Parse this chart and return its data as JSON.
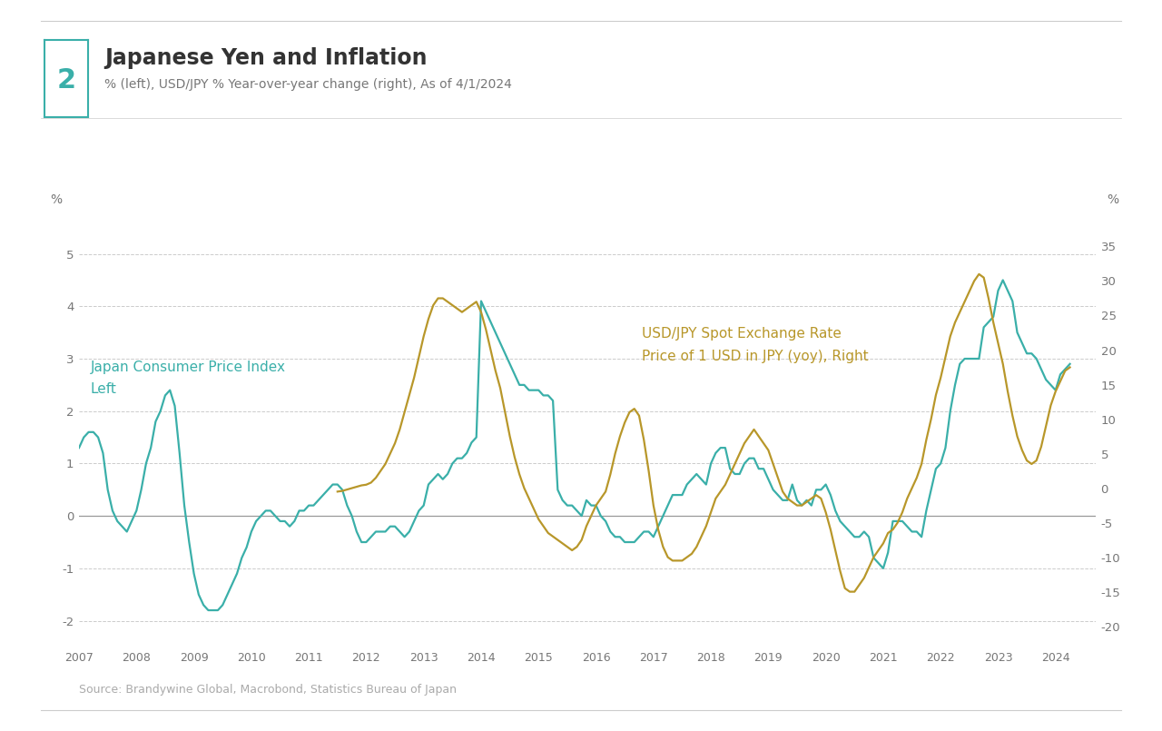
{
  "title": "Japanese Yen and Inflation",
  "subtitle": "% (left), USD/JPY % Year-over-year change (right), As of 4/1/2024",
  "chart_number": "2",
  "source": "Source: Brandywine Global, Macrobond, Statistics Bureau of Japan",
  "cpi_color": "#3aafa9",
  "usd_jpy_color": "#b8972a",
  "background_color": "#ffffff",
  "left_ylim": [
    -2.5,
    5.8
  ],
  "right_ylim": [
    -23.0,
    40.0
  ],
  "left_yticks": [
    -2,
    -1,
    0,
    1,
    2,
    3,
    4,
    5
  ],
  "right_yticks": [
    -20,
    -15,
    -10,
    -5,
    0,
    5,
    10,
    15,
    20,
    25,
    30,
    35
  ],
  "cpi_label_title": "Japan Consumer Price Index",
  "cpi_label_sub": "Left",
  "usd_label_title": "USD/JPY Spot Exchange Rate",
  "usd_label_sub": "Price of 1 USD in JPY (yoy), Right",
  "cpi_dates": [
    2007.0,
    2007.083,
    2007.167,
    2007.25,
    2007.333,
    2007.417,
    2007.5,
    2007.583,
    2007.667,
    2007.75,
    2007.833,
    2007.917,
    2008.0,
    2008.083,
    2008.167,
    2008.25,
    2008.333,
    2008.417,
    2008.5,
    2008.583,
    2008.667,
    2008.75,
    2008.833,
    2008.917,
    2009.0,
    2009.083,
    2009.167,
    2009.25,
    2009.333,
    2009.417,
    2009.5,
    2009.583,
    2009.667,
    2009.75,
    2009.833,
    2009.917,
    2010.0,
    2010.083,
    2010.167,
    2010.25,
    2010.333,
    2010.417,
    2010.5,
    2010.583,
    2010.667,
    2010.75,
    2010.833,
    2010.917,
    2011.0,
    2011.083,
    2011.167,
    2011.25,
    2011.333,
    2011.417,
    2011.5,
    2011.583,
    2011.667,
    2011.75,
    2011.833,
    2011.917,
    2012.0,
    2012.083,
    2012.167,
    2012.25,
    2012.333,
    2012.417,
    2012.5,
    2012.583,
    2012.667,
    2012.75,
    2012.833,
    2012.917,
    2013.0,
    2013.083,
    2013.167,
    2013.25,
    2013.333,
    2013.417,
    2013.5,
    2013.583,
    2013.667,
    2013.75,
    2013.833,
    2013.917,
    2014.0,
    2014.083,
    2014.167,
    2014.25,
    2014.333,
    2014.417,
    2014.5,
    2014.583,
    2014.667,
    2014.75,
    2014.833,
    2014.917,
    2015.0,
    2015.083,
    2015.167,
    2015.25,
    2015.333,
    2015.417,
    2015.5,
    2015.583,
    2015.667,
    2015.75,
    2015.833,
    2015.917,
    2016.0,
    2016.083,
    2016.167,
    2016.25,
    2016.333,
    2016.417,
    2016.5,
    2016.583,
    2016.667,
    2016.75,
    2016.833,
    2016.917,
    2017.0,
    2017.083,
    2017.167,
    2017.25,
    2017.333,
    2017.417,
    2017.5,
    2017.583,
    2017.667,
    2017.75,
    2017.833,
    2017.917,
    2018.0,
    2018.083,
    2018.167,
    2018.25,
    2018.333,
    2018.417,
    2018.5,
    2018.583,
    2018.667,
    2018.75,
    2018.833,
    2018.917,
    2019.0,
    2019.083,
    2019.167,
    2019.25,
    2019.333,
    2019.417,
    2019.5,
    2019.583,
    2019.667,
    2019.75,
    2019.833,
    2019.917,
    2020.0,
    2020.083,
    2020.167,
    2020.25,
    2020.333,
    2020.417,
    2020.5,
    2020.583,
    2020.667,
    2020.75,
    2020.833,
    2020.917,
    2021.0,
    2021.083,
    2021.167,
    2021.25,
    2021.333,
    2021.417,
    2021.5,
    2021.583,
    2021.667,
    2021.75,
    2021.833,
    2021.917,
    2022.0,
    2022.083,
    2022.167,
    2022.25,
    2022.333,
    2022.417,
    2022.5,
    2022.583,
    2022.667,
    2022.75,
    2022.833,
    2022.917,
    2023.0,
    2023.083,
    2023.167,
    2023.25,
    2023.333,
    2023.417,
    2023.5,
    2023.583,
    2023.667,
    2023.75,
    2023.833,
    2023.917,
    2024.0,
    2024.083,
    2024.167,
    2024.25
  ],
  "cpi_values": [
    1.3,
    1.5,
    1.6,
    1.6,
    1.5,
    1.2,
    0.5,
    0.1,
    -0.1,
    -0.2,
    -0.3,
    -0.1,
    0.1,
    0.5,
    1.0,
    1.3,
    1.8,
    2.0,
    2.3,
    2.4,
    2.1,
    1.2,
    0.2,
    -0.5,
    -1.1,
    -1.5,
    -1.7,
    -1.8,
    -1.8,
    -1.8,
    -1.7,
    -1.5,
    -1.3,
    -1.1,
    -0.8,
    -0.6,
    -0.3,
    -0.1,
    0.0,
    0.1,
    0.1,
    0.0,
    -0.1,
    -0.1,
    -0.2,
    -0.1,
    0.1,
    0.1,
    0.2,
    0.2,
    0.3,
    0.4,
    0.5,
    0.6,
    0.6,
    0.5,
    0.2,
    0.0,
    -0.3,
    -0.5,
    -0.5,
    -0.4,
    -0.3,
    -0.3,
    -0.3,
    -0.2,
    -0.2,
    -0.3,
    -0.4,
    -0.3,
    -0.1,
    0.1,
    0.2,
    0.6,
    0.7,
    0.8,
    0.7,
    0.8,
    1.0,
    1.1,
    1.1,
    1.2,
    1.4,
    1.5,
    4.1,
    3.9,
    3.7,
    3.5,
    3.3,
    3.1,
    2.9,
    2.7,
    2.5,
    2.5,
    2.4,
    2.4,
    2.4,
    2.3,
    2.3,
    2.2,
    0.5,
    0.3,
    0.2,
    0.2,
    0.1,
    0.0,
    0.3,
    0.2,
    0.2,
    0.0,
    -0.1,
    -0.3,
    -0.4,
    -0.4,
    -0.5,
    -0.5,
    -0.5,
    -0.4,
    -0.3,
    -0.3,
    -0.4,
    -0.2,
    0.0,
    0.2,
    0.4,
    0.4,
    0.4,
    0.6,
    0.7,
    0.8,
    0.7,
    0.6,
    1.0,
    1.2,
    1.3,
    1.3,
    0.9,
    0.8,
    0.8,
    1.0,
    1.1,
    1.1,
    0.9,
    0.9,
    0.7,
    0.5,
    0.4,
    0.3,
    0.3,
    0.6,
    0.3,
    0.2,
    0.3,
    0.2,
    0.5,
    0.5,
    0.6,
    0.4,
    0.1,
    -0.1,
    -0.2,
    -0.3,
    -0.4,
    -0.4,
    -0.3,
    -0.4,
    -0.8,
    -0.9,
    -1.0,
    -0.7,
    -0.1,
    -0.1,
    -0.1,
    -0.2,
    -0.3,
    -0.3,
    -0.4,
    0.1,
    0.5,
    0.9,
    1.0,
    1.3,
    2.0,
    2.5,
    2.9,
    3.0,
    3.0,
    3.0,
    3.0,
    3.6,
    3.7,
    3.8,
    4.3,
    4.5,
    4.3,
    4.1,
    3.5,
    3.3,
    3.1,
    3.1,
    3.0,
    2.8,
    2.6,
    2.5,
    2.4,
    2.7,
    2.8,
    2.9
  ],
  "usd_jpy_dates": [
    2011.5,
    2011.583,
    2011.667,
    2011.75,
    2011.833,
    2011.917,
    2012.0,
    2012.083,
    2012.167,
    2012.25,
    2012.333,
    2012.417,
    2012.5,
    2012.583,
    2012.667,
    2012.75,
    2012.833,
    2012.917,
    2013.0,
    2013.083,
    2013.167,
    2013.25,
    2013.333,
    2013.417,
    2013.5,
    2013.583,
    2013.667,
    2013.75,
    2013.833,
    2013.917,
    2014.0,
    2014.083,
    2014.167,
    2014.25,
    2014.333,
    2014.417,
    2014.5,
    2014.583,
    2014.667,
    2014.75,
    2014.833,
    2014.917,
    2015.0,
    2015.083,
    2015.167,
    2015.25,
    2015.333,
    2015.417,
    2015.5,
    2015.583,
    2015.667,
    2015.75,
    2015.833,
    2015.917,
    2016.0,
    2016.083,
    2016.167,
    2016.25,
    2016.333,
    2016.417,
    2016.5,
    2016.583,
    2016.667,
    2016.75,
    2016.833,
    2016.917,
    2017.0,
    2017.083,
    2017.167,
    2017.25,
    2017.333,
    2017.417,
    2017.5,
    2017.583,
    2017.667,
    2017.75,
    2017.833,
    2017.917,
    2018.0,
    2018.083,
    2018.167,
    2018.25,
    2018.333,
    2018.417,
    2018.5,
    2018.583,
    2018.667,
    2018.75,
    2018.833,
    2018.917,
    2019.0,
    2019.083,
    2019.167,
    2019.25,
    2019.333,
    2019.417,
    2019.5,
    2019.583,
    2019.667,
    2019.75,
    2019.833,
    2019.917,
    2020.0,
    2020.083,
    2020.167,
    2020.25,
    2020.333,
    2020.417,
    2020.5,
    2020.583,
    2020.667,
    2020.75,
    2020.833,
    2020.917,
    2021.0,
    2021.083,
    2021.167,
    2021.25,
    2021.333,
    2021.417,
    2021.5,
    2021.583,
    2021.667,
    2021.75,
    2021.833,
    2021.917,
    2022.0,
    2022.083,
    2022.167,
    2022.25,
    2022.333,
    2022.417,
    2022.5,
    2022.583,
    2022.667,
    2022.75,
    2022.833,
    2022.917,
    2023.0,
    2023.083,
    2023.167,
    2023.25,
    2023.333,
    2023.417,
    2023.5,
    2023.583,
    2023.667,
    2023.75,
    2023.833,
    2023.917,
    2024.0,
    2024.083,
    2024.167,
    2024.25
  ],
  "usd_jpy_values": [
    -0.5,
    -0.4,
    -0.2,
    0.0,
    0.2,
    0.4,
    0.5,
    0.8,
    1.5,
    2.5,
    3.5,
    5.0,
    6.5,
    8.5,
    11.0,
    13.5,
    16.0,
    19.0,
    22.0,
    24.5,
    26.5,
    27.5,
    27.5,
    27.0,
    26.5,
    26.0,
    25.5,
    26.0,
    26.5,
    27.0,
    25.5,
    23.0,
    20.0,
    17.0,
    14.5,
    11.0,
    7.5,
    4.5,
    2.0,
    0.0,
    -1.5,
    -3.0,
    -4.5,
    -5.5,
    -6.5,
    -7.0,
    -7.5,
    -8.0,
    -8.5,
    -9.0,
    -8.5,
    -7.5,
    -5.5,
    -4.0,
    -2.5,
    -1.5,
    -0.5,
    2.0,
    5.0,
    7.5,
    9.5,
    11.0,
    11.5,
    10.5,
    7.0,
    2.5,
    -2.5,
    -6.0,
    -8.5,
    -10.0,
    -10.5,
    -10.5,
    -10.5,
    -10.0,
    -9.5,
    -8.5,
    -7.0,
    -5.5,
    -3.5,
    -1.5,
    -0.5,
    0.5,
    2.0,
    3.5,
    5.0,
    6.5,
    7.5,
    8.5,
    7.5,
    6.5,
    5.5,
    3.5,
    1.5,
    -0.5,
    -1.5,
    -2.0,
    -2.5,
    -2.5,
    -2.0,
    -1.5,
    -1.0,
    -1.5,
    -3.5,
    -6.0,
    -9.0,
    -12.0,
    -14.5,
    -15.0,
    -15.0,
    -14.0,
    -13.0,
    -11.5,
    -10.0,
    -9.0,
    -8.0,
    -6.5,
    -6.0,
    -5.0,
    -3.5,
    -1.5,
    0.0,
    1.5,
    3.5,
    7.0,
    10.0,
    13.5,
    16.0,
    19.0,
    22.0,
    24.0,
    25.5,
    27.0,
    28.5,
    30.0,
    31.0,
    30.5,
    27.5,
    24.0,
    21.0,
    18.0,
    14.0,
    10.5,
    7.5,
    5.5,
    4.0,
    3.5,
    4.0,
    6.0,
    9.0,
    12.0,
    14.0,
    15.5,
    17.0,
    17.5
  ]
}
